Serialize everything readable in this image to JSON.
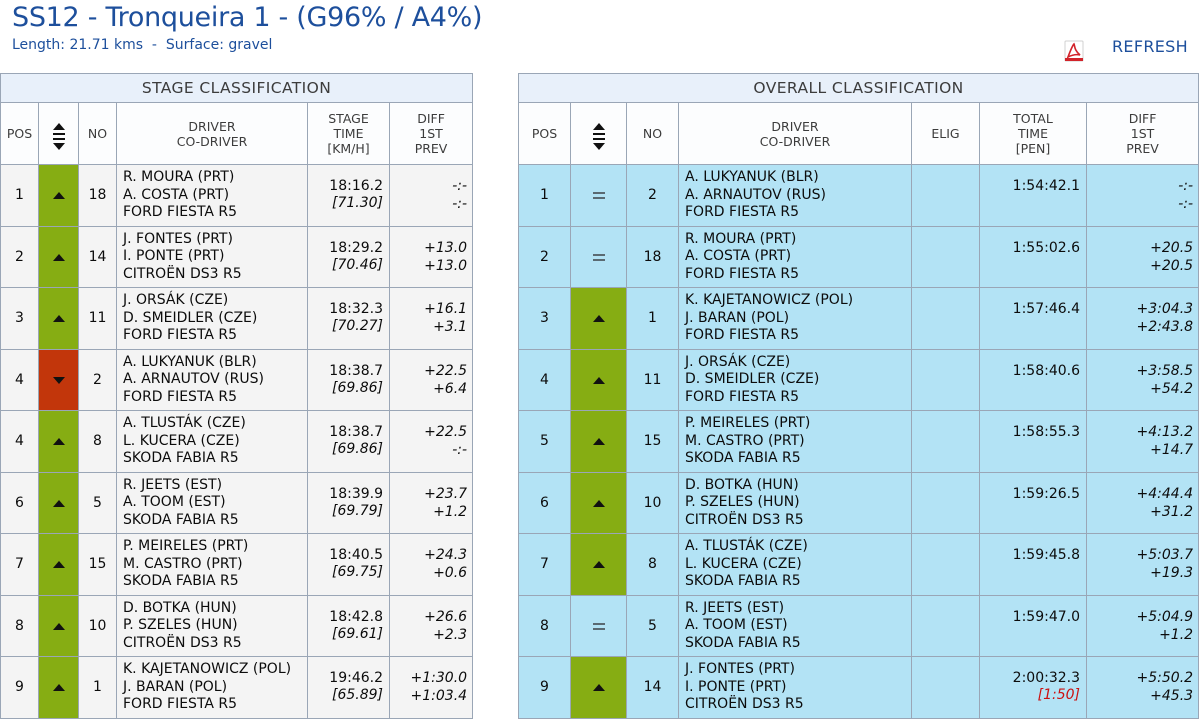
{
  "header": {
    "title": "SS12 - Tronqueira 1 - (G96% / A4%)",
    "subtitle": "Length: 21.71 kms  -  Surface: gravel",
    "refresh_label": "REFRESH"
  },
  "icons": {
    "pdf": "pdf-icon",
    "sort": "sort-updown-icon",
    "up": "position-up-icon",
    "down": "position-down-icon",
    "same": "position-same-icon"
  },
  "colors": {
    "brand": "#1d4f9c",
    "up": "#86ad13",
    "down": "#c2360b",
    "overall_row": "#b3e3f5",
    "penalty": "#cc1111"
  },
  "stage": {
    "title": "STAGE CLASSIFICATION",
    "headers": {
      "pos": "POS",
      "no": "NO",
      "driver": "DRIVER",
      "codriver": "CO-DRIVER",
      "time1": "STAGE",
      "time2": "TIME",
      "time3": "[KM/H]",
      "diff1": "DIFF",
      "diff2": "1ST",
      "diff3": "PREV"
    },
    "rows": [
      {
        "pos": "1",
        "change": "up",
        "no": "18",
        "driver": "R. MOURA (PRT)",
        "codriver": "A. COSTA (PRT)",
        "car": "FORD FIESTA R5",
        "time": "18:16.2",
        "speed": "[71.30]",
        "diff_first": "-:-",
        "diff_prev": "-:-"
      },
      {
        "pos": "2",
        "change": "up",
        "no": "14",
        "driver": "J. FONTES (PRT)",
        "codriver": "I. PONTE (PRT)",
        "car": "CITROËN DS3 R5",
        "time": "18:29.2",
        "speed": "[70.46]",
        "diff_first": "+13.0",
        "diff_prev": "+13.0"
      },
      {
        "pos": "3",
        "change": "up",
        "no": "11",
        "driver": "J. ORSÁK (CZE)",
        "codriver": "D. SMEIDLER (CZE)",
        "car": "FORD FIESTA R5",
        "time": "18:32.3",
        "speed": "[70.27]",
        "diff_first": "+16.1",
        "diff_prev": "+3.1"
      },
      {
        "pos": "4",
        "change": "down",
        "no": "2",
        "driver": "A. LUKYANUK (BLR)",
        "codriver": "A. ARNAUTOV (RUS)",
        "car": "FORD FIESTA R5",
        "time": "18:38.7",
        "speed": "[69.86]",
        "diff_first": "+22.5",
        "diff_prev": "+6.4"
      },
      {
        "pos": "4",
        "change": "up",
        "no": "8",
        "driver": "A. TLUSTÁK (CZE)",
        "codriver": "L. KUCERA (CZE)",
        "car": "SKODA FABIA R5",
        "time": "18:38.7",
        "speed": "[69.86]",
        "diff_first": "+22.5",
        "diff_prev": "-:-"
      },
      {
        "pos": "6",
        "change": "up",
        "no": "5",
        "driver": "R. JEETS (EST)",
        "codriver": "A. TOOM (EST)",
        "car": "SKODA FABIA R5",
        "time": "18:39.9",
        "speed": "[69.79]",
        "diff_first": "+23.7",
        "diff_prev": "+1.2"
      },
      {
        "pos": "7",
        "change": "up",
        "no": "15",
        "driver": "P. MEIRELES (PRT)",
        "codriver": "M. CASTRO (PRT)",
        "car": "SKODA FABIA R5",
        "time": "18:40.5",
        "speed": "[69.75]",
        "diff_first": "+24.3",
        "diff_prev": "+0.6"
      },
      {
        "pos": "8",
        "change": "up",
        "no": "10",
        "driver": "D. BOTKA (HUN)",
        "codriver": "P. SZELES (HUN)",
        "car": "CITROËN DS3 R5",
        "time": "18:42.8",
        "speed": "[69.61]",
        "diff_first": "+26.6",
        "diff_prev": "+2.3"
      },
      {
        "pos": "9",
        "change": "up",
        "no": "1",
        "driver": "K. KAJETANOWICZ (POL)",
        "codriver": "J. BARAN (POL)",
        "car": "FORD FIESTA R5",
        "time": "19:46.2",
        "speed": "[65.89]",
        "diff_first": "+1:30.0",
        "diff_prev": "+1:03.4"
      }
    ]
  },
  "overall": {
    "title": "OVERALL CLASSIFICATION",
    "headers": {
      "pos": "POS",
      "no": "NO",
      "driver": "DRIVER",
      "codriver": "CO-DRIVER",
      "elig": "ELIG",
      "time1": "TOTAL",
      "time2": "TIME",
      "time3": "[PEN]",
      "diff1": "DIFF",
      "diff2": "1ST",
      "diff3": "PREV"
    },
    "rows": [
      {
        "pos": "1",
        "change": "same",
        "no": "2",
        "driver": "A. LUKYANUK (BLR)",
        "codriver": "A. ARNAUTOV (RUS)",
        "car": "FORD FIESTA R5",
        "elig": "",
        "time": "1:54:42.1",
        "penalty": "",
        "diff_first": "-:-",
        "diff_prev": "-:-"
      },
      {
        "pos": "2",
        "change": "same",
        "no": "18",
        "driver": "R. MOURA (PRT)",
        "codriver": "A. COSTA (PRT)",
        "car": "FORD FIESTA R5",
        "elig": "",
        "time": "1:55:02.6",
        "penalty": "",
        "diff_first": "+20.5",
        "diff_prev": "+20.5"
      },
      {
        "pos": "3",
        "change": "up",
        "no": "1",
        "driver": "K. KAJETANOWICZ (POL)",
        "codriver": "J. BARAN (POL)",
        "car": "FORD FIESTA R5",
        "elig": "",
        "time": "1:57:46.4",
        "penalty": "",
        "diff_first": "+3:04.3",
        "diff_prev": "+2:43.8"
      },
      {
        "pos": "4",
        "change": "up",
        "no": "11",
        "driver": "J. ORSÁK (CZE)",
        "codriver": "D. SMEIDLER (CZE)",
        "car": "FORD FIESTA R5",
        "elig": "",
        "time": "1:58:40.6",
        "penalty": "",
        "diff_first": "+3:58.5",
        "diff_prev": "+54.2"
      },
      {
        "pos": "5",
        "change": "up",
        "no": "15",
        "driver": "P. MEIRELES (PRT)",
        "codriver": "M. CASTRO (PRT)",
        "car": "SKODA FABIA R5",
        "elig": "",
        "time": "1:58:55.3",
        "penalty": "",
        "diff_first": "+4:13.2",
        "diff_prev": "+14.7"
      },
      {
        "pos": "6",
        "change": "up",
        "no": "10",
        "driver": "D. BOTKA (HUN)",
        "codriver": "P. SZELES (HUN)",
        "car": "CITROËN DS3 R5",
        "elig": "",
        "time": "1:59:26.5",
        "penalty": "",
        "diff_first": "+4:44.4",
        "diff_prev": "+31.2"
      },
      {
        "pos": "7",
        "change": "up",
        "no": "8",
        "driver": "A. TLUSTÁK (CZE)",
        "codriver": "L. KUCERA (CZE)",
        "car": "SKODA FABIA R5",
        "elig": "",
        "time": "1:59:45.8",
        "penalty": "",
        "diff_first": "+5:03.7",
        "diff_prev": "+19.3"
      },
      {
        "pos": "8",
        "change": "same",
        "no": "5",
        "driver": "R. JEETS (EST)",
        "codriver": "A. TOOM (EST)",
        "car": "SKODA FABIA R5",
        "elig": "",
        "time": "1:59:47.0",
        "penalty": "",
        "diff_first": "+5:04.9",
        "diff_prev": "+1.2"
      },
      {
        "pos": "9",
        "change": "up",
        "no": "14",
        "driver": "J. FONTES (PRT)",
        "codriver": "I. PONTE (PRT)",
        "car": "CITROËN DS3 R5",
        "elig": "",
        "time": "2:00:32.3",
        "penalty": "[1:50]",
        "diff_first": "+5:50.2",
        "diff_prev": "+45.3"
      }
    ]
  }
}
